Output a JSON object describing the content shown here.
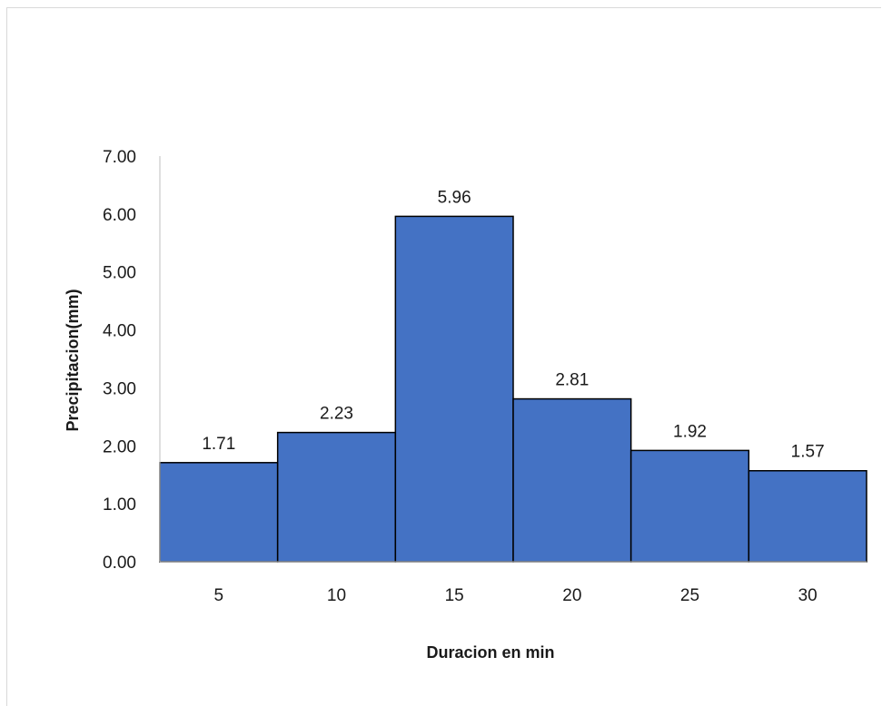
{
  "chart_data": {
    "type": "bar",
    "categories": [
      "5",
      "10",
      "15",
      "20",
      "25",
      "30"
    ],
    "values": [
      1.71,
      2.23,
      5.96,
      2.81,
      1.92,
      1.57
    ],
    "data_labels": [
      "1.71",
      "2.23",
      "5.96",
      "2.81",
      "1.92",
      "1.57"
    ],
    "title": "",
    "xlabel": "Duracion en min",
    "ylabel": "Precipitacion(mm)",
    "ylim": [
      0,
      7
    ],
    "yticks": [
      "0.00",
      "1.00",
      "2.00",
      "3.00",
      "4.00",
      "5.00",
      "6.00",
      "7.00"
    ],
    "grid": false,
    "legend": "none",
    "bar_color": "#4472c4",
    "bar_edge_color": "#000000"
  }
}
